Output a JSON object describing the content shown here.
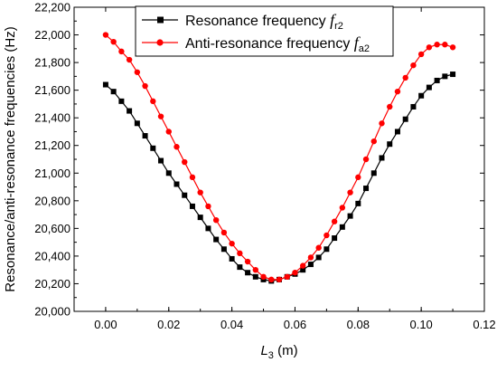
{
  "chart_data": {
    "type": "line",
    "title": "",
    "xlabel": {
      "main": "L",
      "sub": "3",
      "unit": " (m)"
    },
    "ylabel": "Resonance/anti-resonance frequencies (Hz)",
    "xlim": [
      -0.01,
      0.12
    ],
    "ylim": [
      20000,
      22200
    ],
    "x_ticks": [
      "0.00",
      "0.02",
      "0.04",
      "0.06",
      "0.08",
      "0.10",
      "0.12"
    ],
    "y_ticks": [
      "20,000",
      "20,200",
      "20,400",
      "20,600",
      "20,800",
      "21,000",
      "21,200",
      "21,400",
      "21,600",
      "21,800",
      "22,000",
      "22,200"
    ],
    "x_tick_values": [
      0.0,
      0.02,
      0.04,
      0.06,
      0.08,
      0.1,
      0.12
    ],
    "y_tick_values": [
      20000,
      20200,
      20400,
      20600,
      20800,
      21000,
      21200,
      21400,
      21600,
      21800,
      22000,
      22200
    ],
    "grid": false,
    "legend_position": "top-center",
    "x": [
      0.0,
      0.0025,
      0.005,
      0.0075,
      0.01,
      0.0125,
      0.015,
      0.0175,
      0.02,
      0.0225,
      0.025,
      0.0275,
      0.03,
      0.0325,
      0.035,
      0.0375,
      0.04,
      0.0425,
      0.045,
      0.0475,
      0.05,
      0.0525,
      0.055,
      0.0575,
      0.06,
      0.0625,
      0.065,
      0.0675,
      0.07,
      0.0725,
      0.075,
      0.0775,
      0.08,
      0.0825,
      0.085,
      0.0875,
      0.09,
      0.0925,
      0.095,
      0.0975,
      0.1,
      0.1025,
      0.105,
      0.1075,
      0.11
    ],
    "series": [
      {
        "name": {
          "main": "Resonance frequency ",
          "italic": "f",
          "sub": "r2"
        },
        "color": "#000000",
        "marker": "square",
        "values": [
          21640,
          21590,
          21520,
          21450,
          21360,
          21270,
          21180,
          21090,
          21000,
          20920,
          20840,
          20760,
          20680,
          20600,
          20520,
          20450,
          20380,
          20320,
          20280,
          20250,
          20230,
          20220,
          20230,
          20250,
          20270,
          20300,
          20340,
          20390,
          20450,
          20530,
          20610,
          20690,
          20780,
          20890,
          21000,
          21110,
          21210,
          21300,
          21390,
          21480,
          21560,
          21620,
          21670,
          21700,
          21715
        ]
      },
      {
        "name": {
          "main": "Anti-resonance frequency ",
          "italic": "f",
          "sub": "a2"
        },
        "color": "#ff0000",
        "marker": "circle",
        "values": [
          22000,
          21950,
          21880,
          21820,
          21730,
          21630,
          21520,
          21410,
          21300,
          21190,
          21080,
          20970,
          20860,
          20760,
          20660,
          20570,
          20490,
          20420,
          20360,
          20300,
          20250,
          20230,
          20230,
          20250,
          20280,
          20330,
          20390,
          20460,
          20550,
          20650,
          20750,
          20860,
          20970,
          21100,
          21230,
          21360,
          21480,
          21590,
          21690,
          21780,
          21860,
          21910,
          21930,
          21930,
          21910
        ]
      }
    ]
  }
}
